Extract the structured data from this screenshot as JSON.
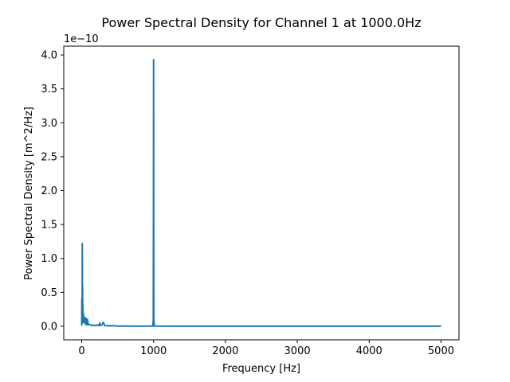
{
  "chart_data": {
    "type": "line",
    "title": "Power Spectral Density for Channel 1 at 1000.0Hz",
    "xlabel": "Frequency [Hz]",
    "ylabel": "Power Spectral Density [m^2/Hz]",
    "y_offset_label": "1e−10",
    "xlim": [
      -250,
      5250
    ],
    "ylim": [
      -2e-11,
      4.13e-10
    ],
    "x_ticks": [
      0,
      1000,
      2000,
      3000,
      4000,
      5000
    ],
    "x_tick_labels": [
      "0",
      "1000",
      "2000",
      "3000",
      "4000",
      "5000"
    ],
    "y_ticks": [
      0,
      5e-11,
      1e-10,
      1.5e-10,
      2e-10,
      2.5e-10,
      3e-10,
      3.5e-10,
      4e-10
    ],
    "y_tick_labels": [
      "0.0",
      "0.5",
      "1.0",
      "1.5",
      "2.0",
      "2.5",
      "3.0",
      "3.5",
      "4.0"
    ],
    "grid": false,
    "series": [
      {
        "color": "#1f77b4",
        "x": [
          0,
          2,
          4,
          5,
          6,
          8,
          10,
          12,
          14,
          16,
          20,
          25,
          30,
          40,
          50,
          60,
          70,
          80,
          90,
          100,
          120,
          140,
          160,
          180,
          200,
          220,
          240,
          250,
          260,
          280,
          300,
          320,
          340,
          360,
          380,
          400,
          420,
          440,
          460,
          500,
          600,
          800,
          990,
          996,
          998,
          1000,
          1002,
          1004,
          1010,
          1200,
          1500,
          2000,
          2500,
          3000,
          3500,
          4000,
          4500,
          5000
        ],
        "y": [
          1e-12,
          4e-11,
          8e-12,
          3e-11,
          5e-12,
          1.22e-10,
          8e-12,
          6e-11,
          5e-12,
          3e-11,
          1.2e-11,
          1.8e-11,
          6e-12,
          1.3e-11,
          3e-12,
          1.2e-11,
          2e-12,
          1e-11,
          2e-12,
          3e-12,
          2e-12,
          1e-12,
          2e-12,
          1e-12,
          1e-12,
          2e-12,
          1e-12,
          5e-12,
          1e-12,
          2e-12,
          6e-12,
          1e-12,
          1e-12,
          1e-12,
          5e-13,
          1e-12,
          5e-13,
          1e-12,
          5e-13,
          3e-13,
          2e-13,
          1e-13,
          2e-13,
          1e-11,
          1.5e-10,
          3.93e-10,
          1.5e-10,
          1e-11,
          2e-13,
          1e-13,
          1e-13,
          1e-13,
          1e-13,
          1e-13,
          1e-13,
          1e-13,
          1e-13,
          1e-13
        ]
      }
    ]
  }
}
